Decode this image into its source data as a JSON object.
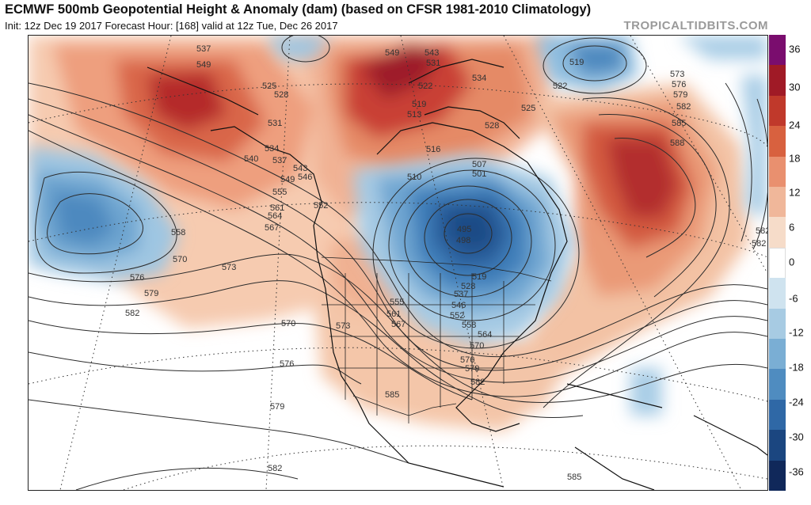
{
  "header": {
    "title": "ECMWF 500mb Geopotential Height & Anomaly (dam) (based on CFSR 1981-2010 Climatology)",
    "subtitle": "Init: 12z Dec 19 2017   Forecast Hour: [168]   valid at 12z Tue, Dec 26 2017",
    "brand": "TROPICALTIDBITS.COM"
  },
  "colorbar": {
    "ticks": [
      "36",
      "30",
      "24",
      "18",
      "12",
      "6",
      "0",
      "-6",
      "-12",
      "-18",
      "-24",
      "-30",
      "-36"
    ],
    "colors": [
      "#f6dcc9",
      "#f0b79a",
      "#e9906f",
      "#d8613f",
      "#c0392b",
      "#a01a26",
      "#7a0d6e",
      "#cfe3ef",
      "#a7cbe3",
      "#7aaed4",
      "#4f8cc0",
      "#2f68a6",
      "#1b4680",
      "#10285a"
    ]
  },
  "map": {
    "contour_labels": [
      "537",
      "549",
      "525",
      "528",
      "531",
      "534",
      "540",
      "537",
      "543",
      "546",
      "549",
      "552",
      "555",
      "561",
      "564",
      "567",
      "558",
      "570",
      "573",
      "576",
      "579",
      "582",
      "549",
      "543",
      "531",
      "522",
      "519",
      "513",
      "516",
      "534",
      "528",
      "525",
      "522",
      "519",
      "573",
      "576",
      "579",
      "582",
      "585",
      "588",
      "582",
      "507",
      "501",
      "495",
      "498",
      "510",
      "519",
      "528",
      "537",
      "546",
      "552",
      "558",
      "564",
      "570",
      "576",
      "579",
      "582",
      "555",
      "561",
      "567",
      "573",
      "570",
      "576",
      "579",
      "582",
      "585",
      "582",
      "585"
    ]
  }
}
